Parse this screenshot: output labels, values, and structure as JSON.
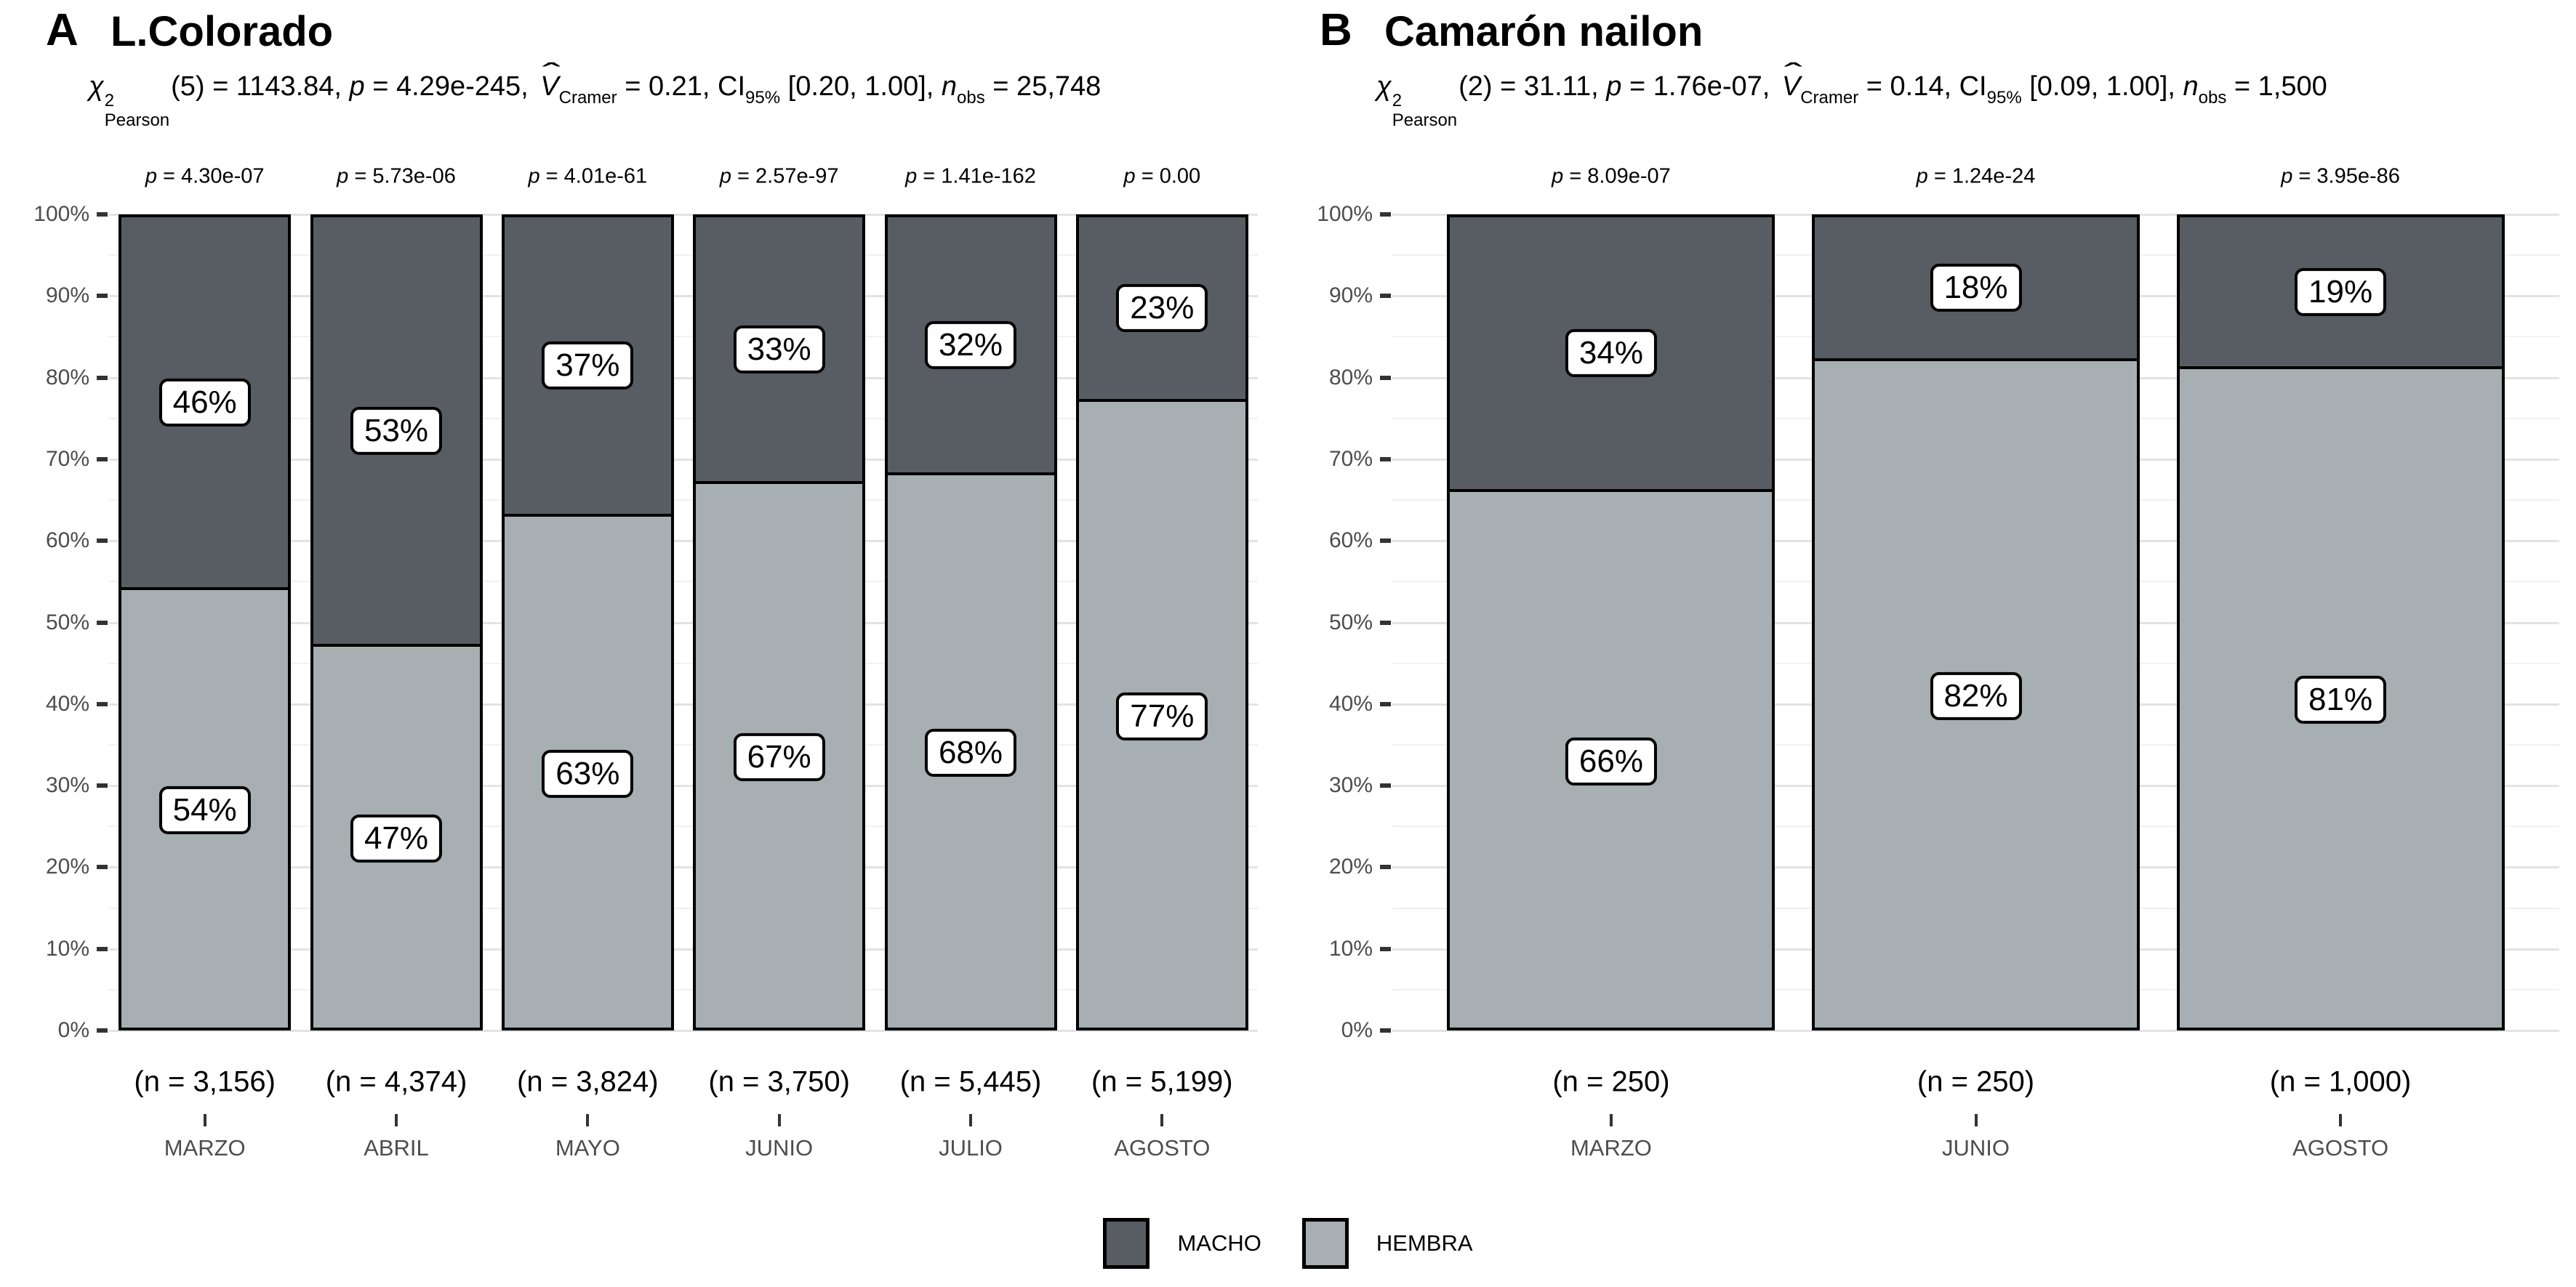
{
  "statics": {
    "p_var": "p",
    "eq": " = "
  },
  "legend": {
    "items": [
      {
        "label": "MACHO",
        "color": "#585d64"
      },
      {
        "label": "HEMBRA",
        "color": "#a8afb2"
      }
    ]
  },
  "chart_data": [
    {
      "type": "bar",
      "stacked": true,
      "units": "percent",
      "panel_tag": "A",
      "title": "L.Colorado",
      "subtitle_parts": {
        "chi": "χ",
        "chi_sup": "2",
        "chi_sub": "Pearson",
        "stat": "(5) = 1143.84, ",
        "p_var": "p",
        "p_rest": " = 4.29e-245, ",
        "v_var": "V",
        "v_hat": "ˆ",
        "v_sub": "Cramer",
        "v_rest": " = 0.21, CI",
        "ci_sub": "95%",
        "ci_rest": " [0.20, 1.00], ",
        "n_var": "n",
        "n_sub": "obs",
        "n_rest": " = 25,748"
      },
      "categories": [
        "MARZO",
        "ABRIL",
        "MAYO",
        "JUNIO",
        "JULIO",
        "AGOSTO"
      ],
      "series": [
        {
          "name": "MACHO",
          "values": [
            46,
            53,
            37,
            33,
            32,
            23
          ]
        },
        {
          "name": "HEMBRA",
          "values": [
            54,
            47,
            63,
            67,
            68,
            77
          ]
        }
      ],
      "segment_labels": {
        "MACHO": [
          "46%",
          "53%",
          "37%",
          "33%",
          "32%",
          "23%"
        ],
        "HEMBRA": [
          "54%",
          "47%",
          "63%",
          "67%",
          "68%",
          "77%"
        ]
      },
      "p_values": [
        "4.30e-07",
        "5.73e-06",
        "4.01e-61",
        "2.57e-97",
        "1.41e-162",
        "0.00"
      ],
      "n_labels": [
        "(n = 3,156)",
        "(n = 4,374)",
        "(n = 3,824)",
        "(n = 3,750)",
        "(n = 5,445)",
        "(n = 5,199)"
      ],
      "y_ticks": [
        "0%",
        "10%",
        "20%",
        "30%",
        "40%",
        "50%",
        "60%",
        "70%",
        "80%",
        "90%",
        "100%"
      ],
      "ylim": [
        0,
        100
      ],
      "grid": true,
      "legend_position": "bottom"
    },
    {
      "type": "bar",
      "stacked": true,
      "units": "percent",
      "panel_tag": "B",
      "title": "Camarón nailon",
      "subtitle_parts": {
        "chi": "χ",
        "chi_sup": "2",
        "chi_sub": "Pearson",
        "stat": "(2) = 31.11, ",
        "p_var": "p",
        "p_rest": " = 1.76e-07, ",
        "v_var": "V",
        "v_hat": "ˆ",
        "v_sub": "Cramer",
        "v_rest": " = 0.14, CI",
        "ci_sub": "95%",
        "ci_rest": " [0.09, 1.00], ",
        "n_var": "n",
        "n_sub": "obs",
        "n_rest": " = 1,500"
      },
      "categories": [
        "MARZO",
        "JUNIO",
        "AGOSTO"
      ],
      "series": [
        {
          "name": "MACHO",
          "values": [
            34,
            18,
            19
          ]
        },
        {
          "name": "HEMBRA",
          "values": [
            66,
            82,
            81
          ]
        }
      ],
      "segment_labels": {
        "MACHO": [
          "34%",
          "18%",
          "19%"
        ],
        "HEMBRA": [
          "66%",
          "82%",
          "81%"
        ]
      },
      "p_values": [
        "8.09e-07",
        "1.24e-24",
        "3.95e-86"
      ],
      "n_labels": [
        "(n = 250)",
        "(n = 250)",
        "(n = 1,000)"
      ],
      "y_ticks": [
        "0%",
        "10%",
        "20%",
        "30%",
        "40%",
        "50%",
        "60%",
        "70%",
        "80%",
        "90%",
        "100%"
      ],
      "ylim": [
        0,
        100
      ],
      "grid": true,
      "legend_position": "bottom"
    }
  ]
}
